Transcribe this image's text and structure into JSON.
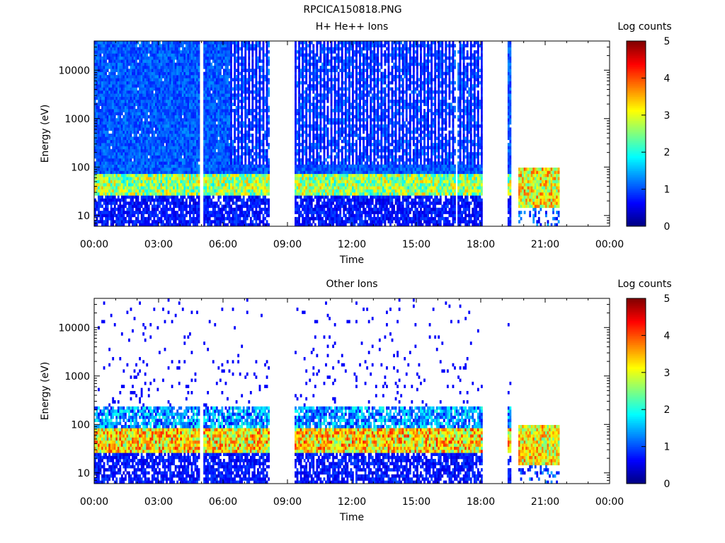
{
  "page_title": "RPCICA150818.PNG",
  "chart_data": [
    {
      "type": "heatmap",
      "title": "H+ He++ Ions",
      "xlabel": "Time",
      "ylabel": "Energy (eV)",
      "xlim": [
        "00:00",
        "24:00"
      ],
      "xtick_labels": [
        "00:00",
        "03:00",
        "06:00",
        "09:00",
        "12:00",
        "15:00",
        "18:00",
        "21:00",
        "00:00"
      ],
      "ylim": [
        6,
        40000
      ],
      "yscale": "log",
      "ytick_labels": [
        "10",
        "100",
        "1000",
        "10000"
      ],
      "data_gaps_hours": [
        [
          8.15,
          9.3
        ],
        [
          18.1,
          19.25
        ],
        [
          19.45,
          19.75
        ],
        [
          21.7,
          24.0
        ]
      ],
      "thin_gaps_hours": [
        5.0,
        16.9
      ],
      "colorbar": {
        "label": "Log counts",
        "range": [
          0,
          5
        ],
        "tick_labels": [
          "0",
          "1",
          "2",
          "3",
          "4",
          "5"
        ]
      },
      "grid": false
    },
    {
      "type": "heatmap",
      "title": "Other Ions",
      "xlabel": "Time",
      "ylabel": "Energy (eV)",
      "xlim": [
        "00:00",
        "24:00"
      ],
      "xtick_labels": [
        "00:00",
        "03:00",
        "06:00",
        "09:00",
        "12:00",
        "15:00",
        "18:00",
        "21:00",
        "00:00"
      ],
      "ylim": [
        6,
        40000
      ],
      "yscale": "log",
      "ytick_labels": [
        "10",
        "100",
        "1000",
        "10000"
      ],
      "data_gaps_hours": [
        [
          8.15,
          9.3
        ],
        [
          18.1,
          19.25
        ],
        [
          19.45,
          19.75
        ],
        [
          21.7,
          24.0
        ]
      ],
      "thin_gaps_hours": [
        5.0
      ],
      "colorbar": {
        "label": "Log counts",
        "range": [
          0,
          5
        ],
        "tick_labels": [
          "0",
          "1",
          "2",
          "3",
          "4",
          "5"
        ]
      },
      "grid": false
    }
  ]
}
